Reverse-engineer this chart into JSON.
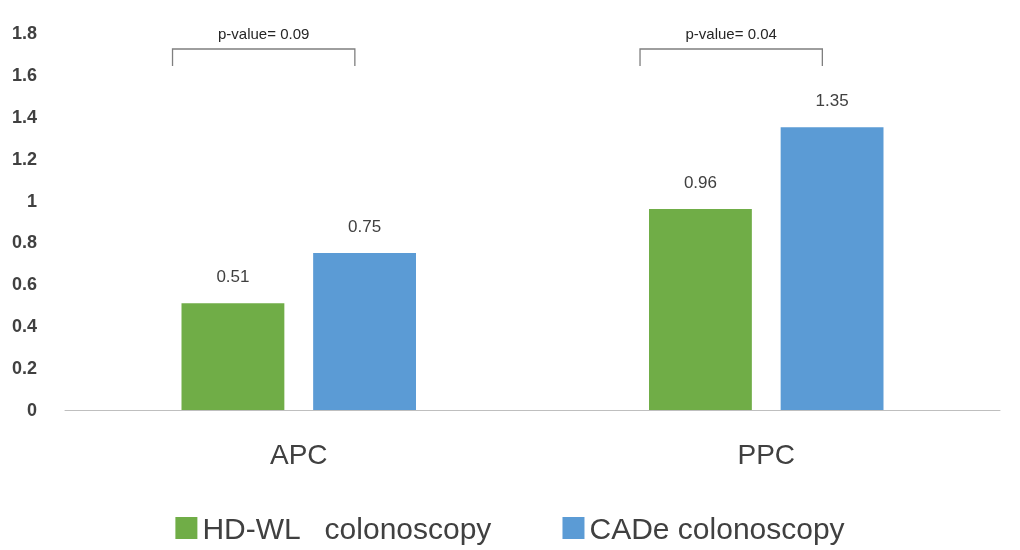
{
  "chart_data": {
    "type": "bar",
    "categories": [
      "APC",
      "PPC"
    ],
    "series": [
      {
        "name": "HD-WL   colonoscopy",
        "color": "#70ad47",
        "values": [
          0.51,
          0.96
        ]
      },
      {
        "name": "CADe colonoscopy",
        "color": "#5b9bd5",
        "values": [
          0.75,
          1.35
        ]
      }
    ],
    "ylim": [
      0,
      1.8
    ],
    "yticks": [
      0,
      0.2,
      0.4,
      0.6,
      0.8,
      1,
      1.2,
      1.4,
      1.6,
      1.8
    ],
    "grid": false,
    "legend": "bottom",
    "data_labels": true,
    "annotations": [
      "p-value= 0.09",
      "p-value= 0.04"
    ]
  }
}
